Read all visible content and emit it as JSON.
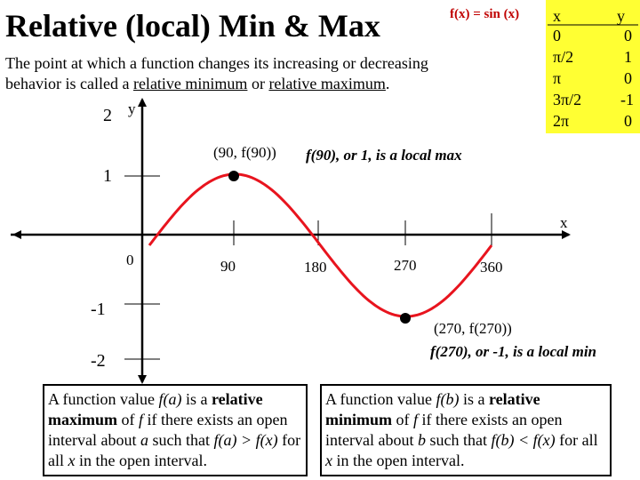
{
  "title": "Relative (local) Min & Max",
  "function_label": "f(x) = sin (x)",
  "table": {
    "headers": [
      "x",
      "y"
    ],
    "rows": [
      [
        "0",
        "0"
      ],
      [
        "π/2",
        "1"
      ],
      [
        "π",
        "0"
      ],
      [
        "3π/2",
        "-1"
      ],
      [
        "2π",
        "0"
      ]
    ]
  },
  "intro": {
    "part1": "The point at which a function changes its increasing or decreasing behavior is called a ",
    "term_min": "relative minimum",
    "part2": " or ",
    "term_max": "relative maximum",
    "part3": "."
  },
  "graph": {
    "x_axis_label": "x",
    "y_axis_label": "y",
    "x_ticks": [
      "0",
      "90",
      "180",
      "270",
      "360"
    ],
    "y_ticks": [
      "2",
      "1",
      "-1",
      "-2"
    ],
    "max_point_label": "(90, f(90))",
    "max_note": "f(90), or 1, is a local max",
    "min_point_label": "(270, f(270))",
    "min_note": "f(270), or -1, is a local min",
    "curve_color": "#e8141e"
  },
  "max_def": {
    "t1": "A function value ",
    "fa": "f(a)",
    "t2": " is a ",
    "rel": "relative maximum",
    "t3": " of ",
    "f": "f",
    "t4": " if there exists an open interval about ",
    "a": "a",
    "t5": " such that ",
    "cond": "f(a) > f(x)",
    "t6": " for all ",
    "x": "x",
    "t7": " in the open interval."
  },
  "min_def": {
    "t1": "A function value ",
    "fb": "f(b)",
    "t2": " is a ",
    "rel": "relative minimum",
    "t3": " of ",
    "f": "f",
    "t4": " if there exists an open interval about ",
    "b": "b",
    "t5": " such that ",
    "cond": "f(b) < f(x)",
    "t6": " for all ",
    "x": "x",
    "t7": " in the open interval."
  }
}
